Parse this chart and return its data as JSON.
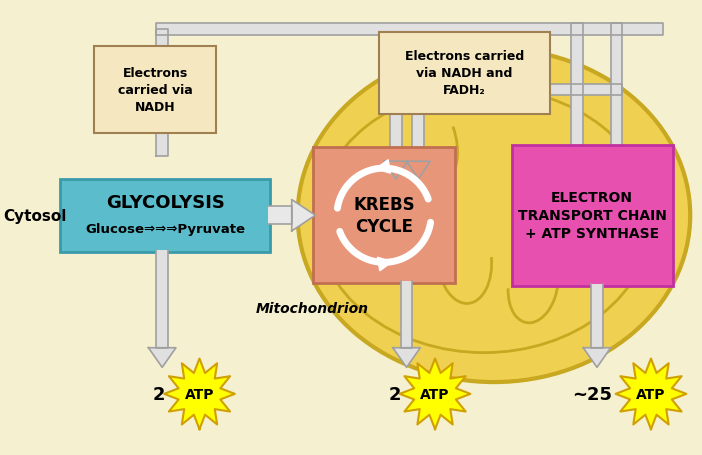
{
  "bg_color": "#f5f0d0",
  "mito_fill": "#f0d050",
  "mito_edge": "#c8a820",
  "mito_inner_fill": "#e8c030",
  "glycolysis_fill": "#5bbccc",
  "glycolysis_edge": "#3a9aaa",
  "krebs_fill": "#e8967a",
  "krebs_edge": "#c07050",
  "etc_fill": "#e850b0",
  "etc_edge": "#c030a0",
  "nadh_fill": "#f5e8c0",
  "nadh_edge": "#a08050",
  "pipe_fill": "#e0e0e0",
  "pipe_edge": "#a0a0a0",
  "atp_fill": "#ffff00",
  "atp_edge": "#d0a000",
  "arrow_fill": "#e8e8e8",
  "arrow_edge": "#a0a0a0",
  "krebs_circle_color": "#ffffff",
  "glycolysis_label": "GLYCOLYSIS",
  "glucose_pyruvate": "Glucose⇒⇒⇒Pyruvate",
  "krebs_label": "KREBS\nCYCLE",
  "etc_label": "ELECTRON\nTRANSPORT CHAIN\n+ ATP SYNTHASE",
  "nadh_left_label": "Electrons\ncarried via\nNADH",
  "nadh_right_label": "Electrons carried\nvia NADH and\nFADH₂",
  "cytosol_label": "Cytosol",
  "mito_label": "Mitochondrion",
  "atp1_num": "2",
  "atp2_num": "2",
  "atp3_num": "~25",
  "fig_w": 7.02,
  "fig_h": 4.56,
  "dpi": 100
}
